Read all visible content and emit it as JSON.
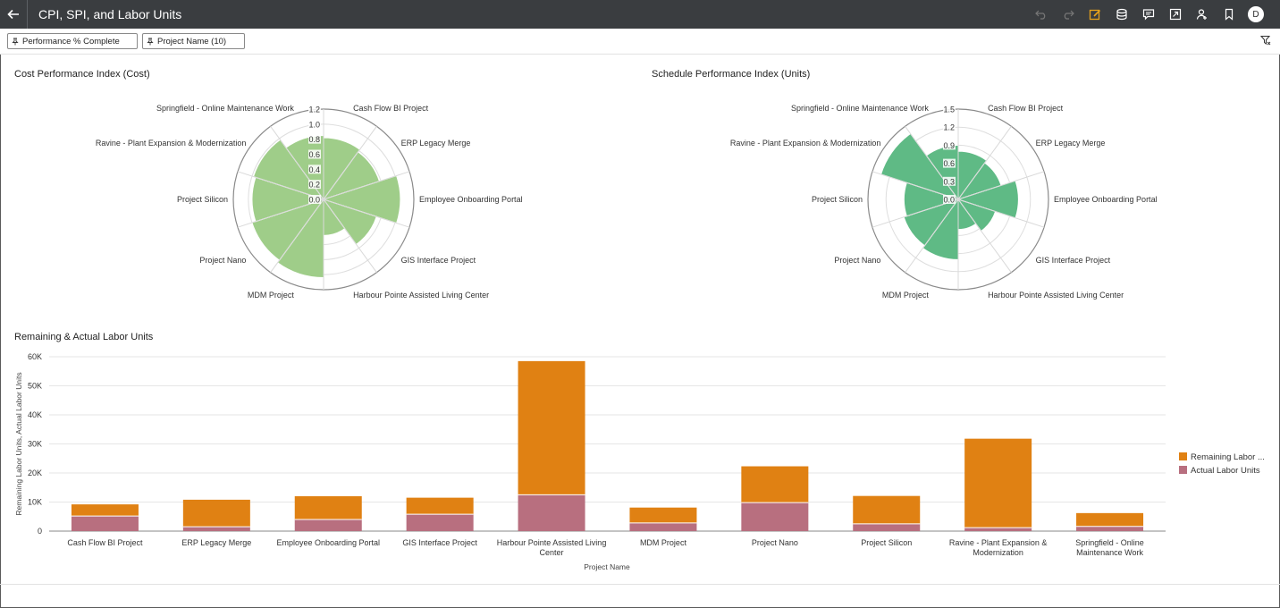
{
  "header": {
    "title": "CPI, SPI, and Labor Units",
    "avatar_initial": "D"
  },
  "filters": [
    {
      "label": "Performance % Complete"
    },
    {
      "label": "Project Name (10)"
    }
  ],
  "icons": {
    "toolbar": [
      "undo-icon",
      "redo-icon",
      "edit-icon",
      "data-icon",
      "comment-icon",
      "present-icon",
      "share-user-icon",
      "bookmark-icon"
    ]
  },
  "colors": {
    "cpi_fill": "#9fcd89",
    "spi_fill": "#5fba85",
    "remaining": "#e08113",
    "actual": "#b86f7f",
    "topbar": "#3a3d40"
  },
  "chart_data": [
    {
      "type": "radar",
      "title": "Cost Performance Index (Cost)",
      "categories": [
        "Cash Flow BI Project",
        "ERP Legacy Merge",
        "Employee Onboarding Portal",
        "GIS Interface Project",
        "Harbour Pointe Assisted Living Center",
        "MDM Project",
        "Project Nano",
        "Project Silicon",
        "Ravine - Plant Expansion & Modernization",
        "Springfield - Online Maintenance Work"
      ],
      "values": [
        0.82,
        0.78,
        1.02,
        0.74,
        0.48,
        1.04,
        1.0,
        0.95,
        0.98,
        0.85
      ],
      "rlim": [
        0,
        1.2
      ],
      "ticks": [
        "0.0",
        "0.2",
        "0.4",
        "0.6",
        "0.8",
        "1.0",
        "1.2"
      ]
    },
    {
      "type": "radar",
      "title": "Schedule Performance Index (Units)",
      "categories": [
        "Cash Flow BI Project",
        "ERP Legacy Merge",
        "Employee Onboarding Portal",
        "GIS Interface Project",
        "Harbour Pointe Assisted Living Center",
        "MDM Project",
        "Project Nano",
        "Project Silicon",
        "Ravine - Plant Expansion & Modernization",
        "Springfield - Online Maintenance Work"
      ],
      "values": [
        0.8,
        0.75,
        1.0,
        0.65,
        0.5,
        1.0,
        0.95,
        0.9,
        1.35,
        0.9
      ],
      "rlim": [
        0,
        1.5
      ],
      "ticks": [
        "0.0",
        "0.3",
        "0.6",
        "0.9",
        "1.2",
        "1.5"
      ]
    },
    {
      "type": "bar",
      "stacked": true,
      "title": "Remaining & Actual Labor Units",
      "xlabel": "Project Name",
      "ylabel": "Remaining Labor Units, Actual Labor Units",
      "categories": [
        "Cash Flow BI Project",
        "ERP Legacy Merge",
        "Employee Onboarding Portal",
        "GIS Interface Project",
        "Harbour Pointe Assisted Living Center",
        "MDM Project",
        "Project Nano",
        "Project Silicon",
        "Ravine - Plant Expansion & Modernization",
        "Springfield - Online Maintenance Work"
      ],
      "category_lines": [
        [
          "Cash Flow BI Project"
        ],
        [
          "ERP Legacy Merge"
        ],
        [
          "Employee Onboarding Portal"
        ],
        [
          "GIS Interface Project"
        ],
        [
          "Harbour Pointe Assisted Living",
          "Center"
        ],
        [
          "MDM Project"
        ],
        [
          "Project Nano"
        ],
        [
          "Project Silicon"
        ],
        [
          "Ravine - Plant Expansion &",
          "Modernization"
        ],
        [
          "Springfield - Online",
          "Maintenance Work"
        ]
      ],
      "series": [
        {
          "name": "Actual Labor Units",
          "values": [
            5200,
            1500,
            4000,
            5800,
            12500,
            2800,
            9800,
            2500,
            1200,
            1600
          ]
        },
        {
          "name": "Remaining Labor Units",
          "values": [
            4000,
            9300,
            8000,
            5700,
            46000,
            5300,
            12500,
            9600,
            30600,
            4600
          ]
        }
      ],
      "legend": [
        "Remaining Labor ...",
        "Actual Labor Units"
      ],
      "legend_position": "right",
      "ylim": [
        0,
        60000
      ],
      "yticks": [
        "0",
        "10K",
        "20K",
        "30K",
        "40K",
        "50K",
        "60K"
      ],
      "grid": true
    }
  ]
}
